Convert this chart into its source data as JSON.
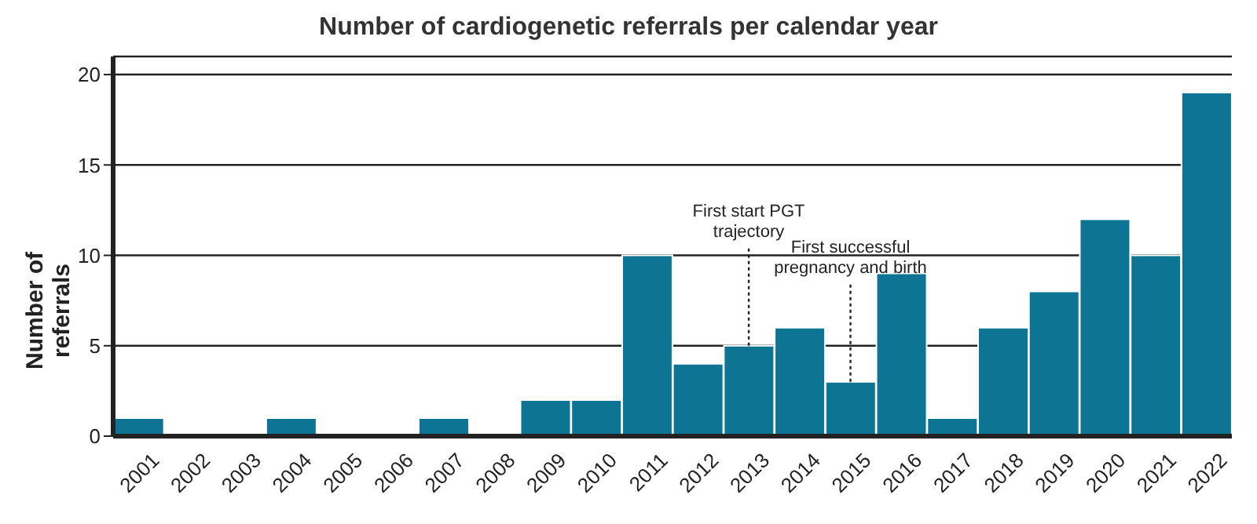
{
  "chart_data": {
    "type": "bar",
    "title": "Number of cardiogenetic referrals per calendar year",
    "ylabel": "Number of referrals",
    "categories": [
      "2001",
      "2002",
      "2003",
      "2004",
      "2005",
      "2006",
      "2007",
      "2008",
      "2009",
      "2010",
      "2011",
      "2012",
      "2013",
      "2014",
      "2015",
      "2016",
      "2017",
      "2018",
      "2019",
      "2020",
      "2021",
      "2022"
    ],
    "values": [
      1,
      0,
      0,
      1,
      0,
      0,
      1,
      0,
      2,
      2,
      10,
      4,
      5,
      6,
      3,
      9,
      1,
      6,
      8,
      12,
      10,
      19
    ],
    "color": "#0e7494",
    "ylim": [
      0,
      21
    ],
    "yticks": [
      0,
      5,
      10,
      15,
      20
    ],
    "grid": "y",
    "annotations": [
      {
        "text": "First start PGT trajectory",
        "x": "2013",
        "y": 5
      },
      {
        "text": "First successful pregnancy and birth",
        "x": "2015",
        "y": 3
      }
    ]
  }
}
